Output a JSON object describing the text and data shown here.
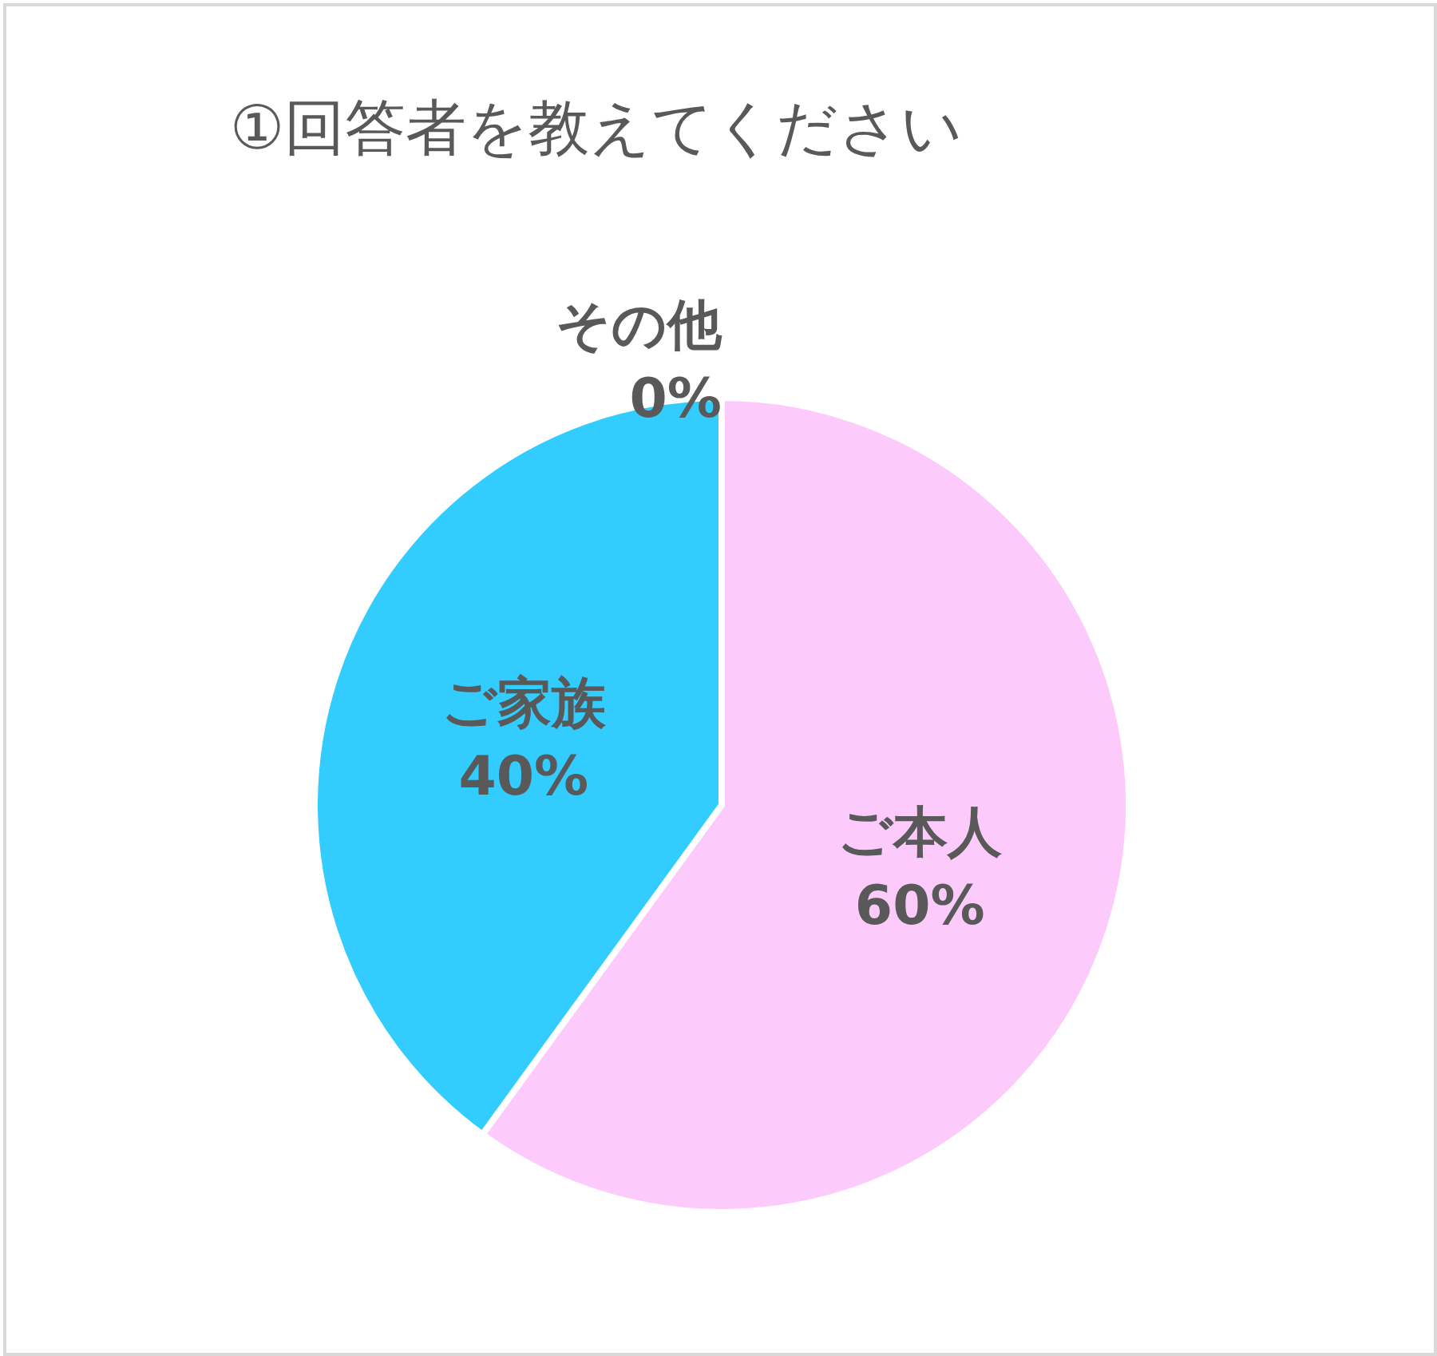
{
  "chart_data": {
    "type": "pie",
    "title": "①回答者を教えてください",
    "categories": [
      "ご本人",
      "ご家族",
      "その他"
    ],
    "values": [
      60,
      40,
      0
    ],
    "value_labels": [
      "60%",
      "40%",
      "0%"
    ],
    "colors": [
      "#fccbfc",
      "#33ccff",
      "#a5a5a5"
    ],
    "legend": false
  }
}
